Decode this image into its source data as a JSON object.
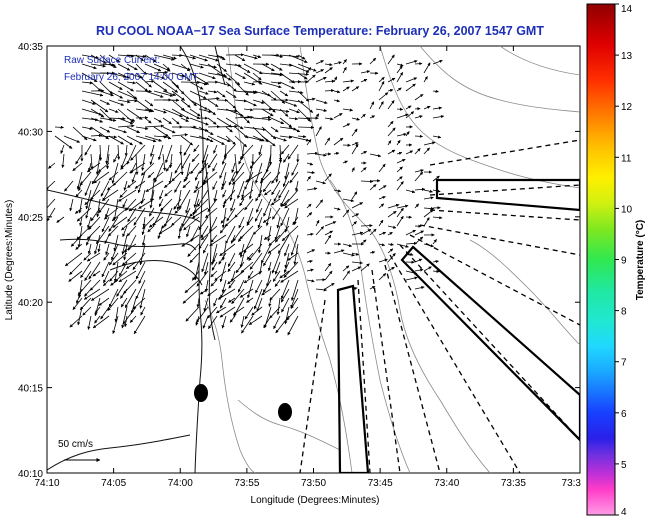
{
  "chart_data": {
    "type": "map",
    "title": "RU COOL  NOAA−17  Sea Surface Temperature:  February 26, 2007 1547 GMT",
    "inset_line1": "Raw Surface Current:",
    "inset_line2": "February 26, 2007 14:00 GMT",
    "xlabel": "Longitude (Degrees:Minutes)",
    "ylabel": "Latitude (Degrees:Minutes)",
    "x_ticks": [
      "74:10",
      "74:05",
      "74:00",
      "73:55",
      "73:50",
      "73:45",
      "73:40",
      "73:35",
      "73:3"
    ],
    "y_ticks": [
      "40:35",
      "40:30",
      "40:25",
      "40:20",
      "40:15",
      "40:10"
    ],
    "xlim_minutes_west": [
      -74.1667,
      -73.5
    ],
    "ylim_minutes_north": [
      40.1667,
      40.5833
    ],
    "scale_label": "50 cm/s",
    "colorbar": {
      "label": "Temperature (°C)",
      "ticks": [
        "14",
        "13",
        "12",
        "11",
        "10",
        "9",
        "8",
        "7",
        "6",
        "5",
        "4"
      ],
      "range": [
        4,
        14
      ]
    }
  }
}
